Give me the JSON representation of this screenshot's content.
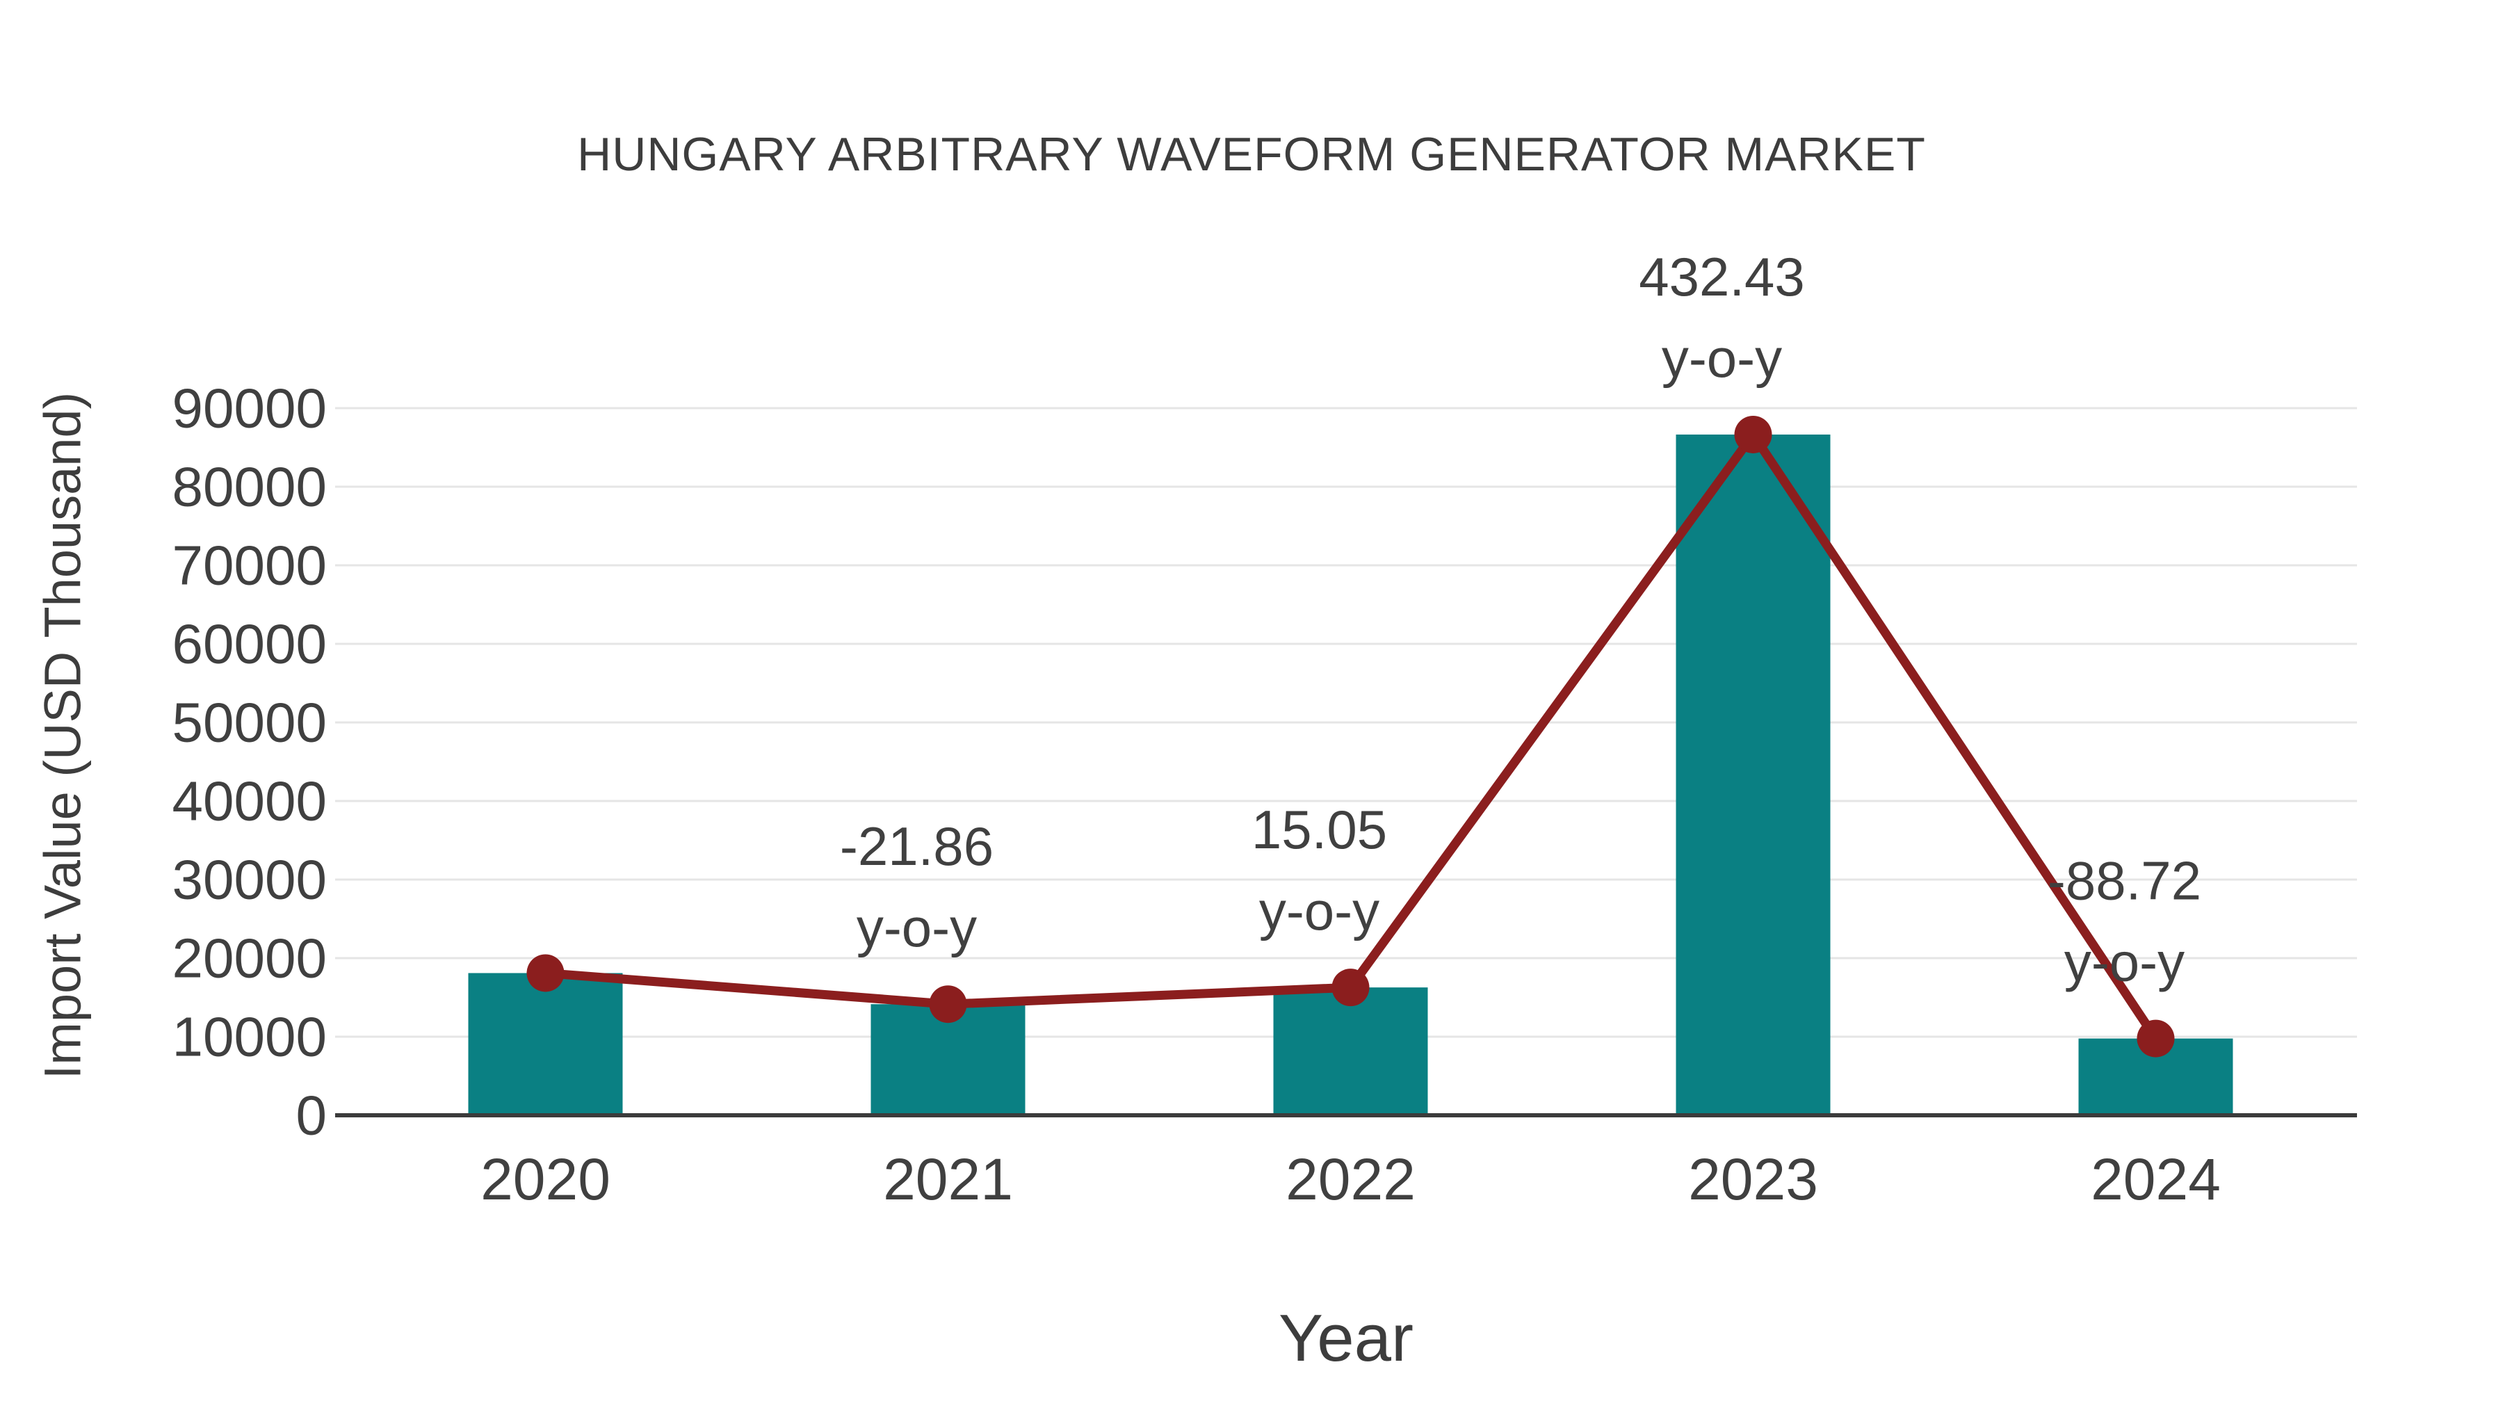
{
  "chart_data": {
    "type": "bar",
    "title": "HUNGARY ARBITRARY WAVEFORM GENERATOR MARKET",
    "xlabel": "Year",
    "ylabel": "Import Value (USD Thousand)",
    "categories": [
      "2020",
      "2021",
      "2022",
      "2023",
      "2024"
    ],
    "series": [
      {
        "name": "Import Value (bars)",
        "type": "bar",
        "values": [
          18100,
          14140,
          16270,
          86640,
          9770
        ]
      },
      {
        "name": "Import Value (line)",
        "type": "line",
        "values": [
          18100,
          14140,
          16270,
          86640,
          9770
        ]
      }
    ],
    "annotations": [
      {
        "category": "2021",
        "value_text": "-21.86",
        "sub_text": "y-o-y"
      },
      {
        "category": "2022",
        "value_text": "15.05",
        "sub_text": "y-o-y"
      },
      {
        "category": "2023",
        "value_text": "432.43",
        "sub_text": "y-o-y"
      },
      {
        "category": "2024",
        "value_text": "-88.72",
        "sub_text": "y-o-y"
      }
    ],
    "yticks": [
      0,
      10000,
      20000,
      30000,
      40000,
      50000,
      60000,
      70000,
      80000,
      90000
    ],
    "ylim": [
      0,
      92000
    ],
    "grid": true,
    "legend": "none",
    "colors": {
      "bar_fill": "#0a8083",
      "line_stroke": "#8b1e1e",
      "marker_fill": "#8b1e1e",
      "gridline": "#e5e5e5",
      "axis_line": "#3b3b3b",
      "text": "#404040"
    }
  }
}
